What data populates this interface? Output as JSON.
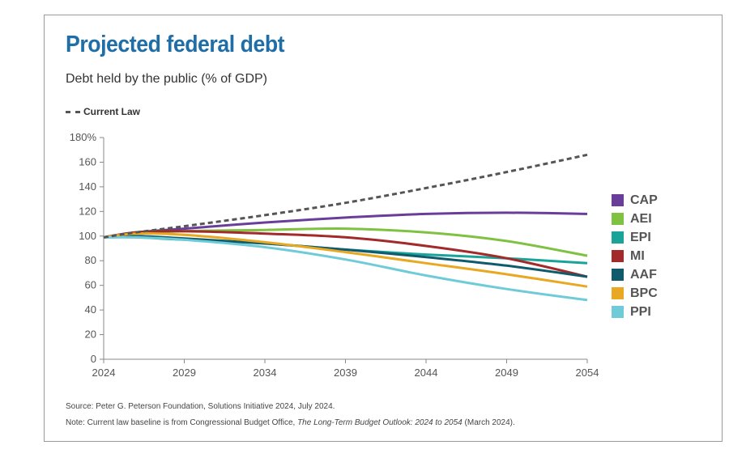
{
  "title": "Projected federal debt",
  "subtitle": "Debt held by the public (% of GDP)",
  "current_law_label": "Current Law",
  "source": "Source: Peter G. Peterson Foundation, Solutions Initiative 2024, July 2024.",
  "note": {
    "prefix": "Note: Current law baseline is from Congressional Budget Office, ",
    "italic": "The Long-Term Budget Outlook: 2024 to 2054",
    "suffix": " (March 2024)."
  },
  "chart_data": {
    "type": "line",
    "title": "Projected federal debt",
    "subtitle": "Debt held by the public (% of GDP)",
    "xlabel": "",
    "ylabel": "",
    "xlim": [
      2024,
      2054
    ],
    "ylim": [
      0,
      180
    ],
    "x_ticks": [
      2024,
      2029,
      2034,
      2039,
      2044,
      2049,
      2054
    ],
    "y_ticks": [
      0,
      20,
      40,
      60,
      80,
      100,
      120,
      140,
      160,
      180
    ],
    "y_tick_labels": [
      "0",
      "20",
      "40",
      "60",
      "80",
      "100",
      "120",
      "140",
      "160",
      "180%"
    ],
    "grid": false,
    "legend_position": "right",
    "x": [
      2024,
      2026,
      2029,
      2034,
      2039,
      2044,
      2049,
      2054
    ],
    "series": [
      {
        "name": "Current Law",
        "color": "#555555",
        "dashed": true,
        "values": [
          99,
          103,
          108,
          117,
          127,
          139,
          152,
          166
        ]
      },
      {
        "name": "CAP",
        "color": "#6a3d9a",
        "values": [
          99,
          103,
          106,
          111,
          115,
          118,
          119,
          118
        ]
      },
      {
        "name": "AEI",
        "color": "#7fc241",
        "values": [
          99,
          102,
          104,
          105,
          106,
          103,
          96,
          84
        ]
      },
      {
        "name": "EPI",
        "color": "#1aa399",
        "values": [
          99,
          99,
          97,
          94,
          89,
          85,
          82,
          78
        ]
      },
      {
        "name": "MI",
        "color": "#a32a2a",
        "values": [
          99,
          103,
          104,
          102,
          99,
          92,
          82,
          67
        ]
      },
      {
        "name": "AAF",
        "color": "#0f5a6b",
        "values": [
          99,
          100,
          98,
          94,
          89,
          83,
          76,
          67
        ]
      },
      {
        "name": "BPC",
        "color": "#e8a821",
        "values": [
          99,
          102,
          101,
          95,
          87,
          78,
          69,
          59
        ]
      },
      {
        "name": "PPI",
        "color": "#6fcbd8",
        "values": [
          99,
          99,
          97,
          91,
          81,
          68,
          57,
          48
        ]
      }
    ]
  }
}
